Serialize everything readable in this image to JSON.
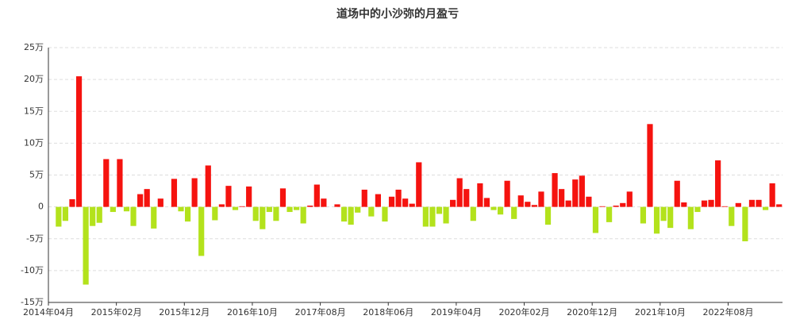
{
  "chart_data": {
    "type": "bar",
    "title": "道场中的小沙弥的月盈亏",
    "categories": [
      "2014年04月",
      null,
      null,
      null,
      null,
      null,
      null,
      null,
      null,
      null,
      "2015年02月",
      null,
      null,
      null,
      null,
      null,
      null,
      null,
      null,
      null,
      "2015年12月",
      null,
      null,
      null,
      null,
      null,
      null,
      null,
      null,
      null,
      "2016年10月",
      null,
      null,
      null,
      null,
      null,
      null,
      null,
      null,
      null,
      "2017年08月",
      null,
      null,
      null,
      null,
      null,
      null,
      null,
      null,
      null,
      "2018年06月",
      null,
      null,
      null,
      null,
      null,
      null,
      null,
      null,
      null,
      "2019年04月",
      null,
      null,
      null,
      null,
      null,
      null,
      null,
      null,
      null,
      "2020年02月",
      null,
      null,
      null,
      null,
      null,
      null,
      null,
      null,
      null,
      "2020年12月",
      null,
      null,
      null,
      null,
      null,
      null,
      null,
      null,
      null,
      "2021年10月",
      null,
      null,
      null,
      null,
      null,
      null,
      null,
      null,
      null,
      "2022年08月",
      null,
      null,
      null,
      null,
      null,
      null,
      null
    ],
    "values": [
      0,
      -3.1,
      -2.2,
      1.2,
      20.5,
      -12.2,
      -3,
      -2.5,
      7.5,
      -0.8,
      7.5,
      -0.7,
      -3,
      2,
      2.8,
      -3.4,
      1.3,
      0,
      4.4,
      -0.7,
      -2.3,
      4.5,
      -7.7,
      6.5,
      -2.1,
      0.4,
      3.3,
      -0.5,
      0.1,
      3.2,
      -2.2,
      -3.5,
      -0.8,
      -2.2,
      2.9,
      -0.8,
      -0.5,
      -2.6,
      0.2,
      3.5,
      1.3,
      0,
      0.4,
      -2.3,
      -2.8,
      -0.9,
      2.7,
      -1.5,
      2,
      -2.3,
      1.6,
      2.7,
      1.3,
      0.5,
      7,
      -3.1,
      -3.1,
      -1.1,
      -2.6,
      1.1,
      4.5,
      2.8,
      -2.2,
      3.7,
      1.4,
      -0.5,
      -1.2,
      4.1,
      -1.9,
      1.8,
      0.8,
      0.3,
      2.4,
      -2.8,
      5.3,
      2.8,
      1,
      4.3,
      4.9,
      1.6,
      -4.1,
      0.1,
      -2.4,
      0.2,
      0.6,
      2.4,
      0,
      -2.6,
      13,
      -4.2,
      -2.2,
      -3.3,
      4.1,
      0.7,
      -3.5,
      -0.8,
      1,
      1.1,
      7.3,
      0.1,
      -3,
      0.6,
      -5.4,
      1.1,
      1.1,
      -0.5,
      3.7,
      0.4
    ],
    "positive_color": "#f5130f",
    "negative_color": "#b3e21c",
    "ylim": [
      -15,
      25
    ],
    "yticks": [
      {
        "value": -15,
        "label": "-15万"
      },
      {
        "value": -10,
        "label": "-10万"
      },
      {
        "value": -5,
        "label": "-5万"
      },
      0,
      {
        "value": 5,
        "label": "5万"
      },
      {
        "value": 10,
        "label": "10万"
      },
      {
        "value": 15,
        "label": "15万"
      },
      {
        "value": 20,
        "label": "20万"
      },
      {
        "value": 25,
        "label": "25万"
      }
    ],
    "grid": true
  }
}
